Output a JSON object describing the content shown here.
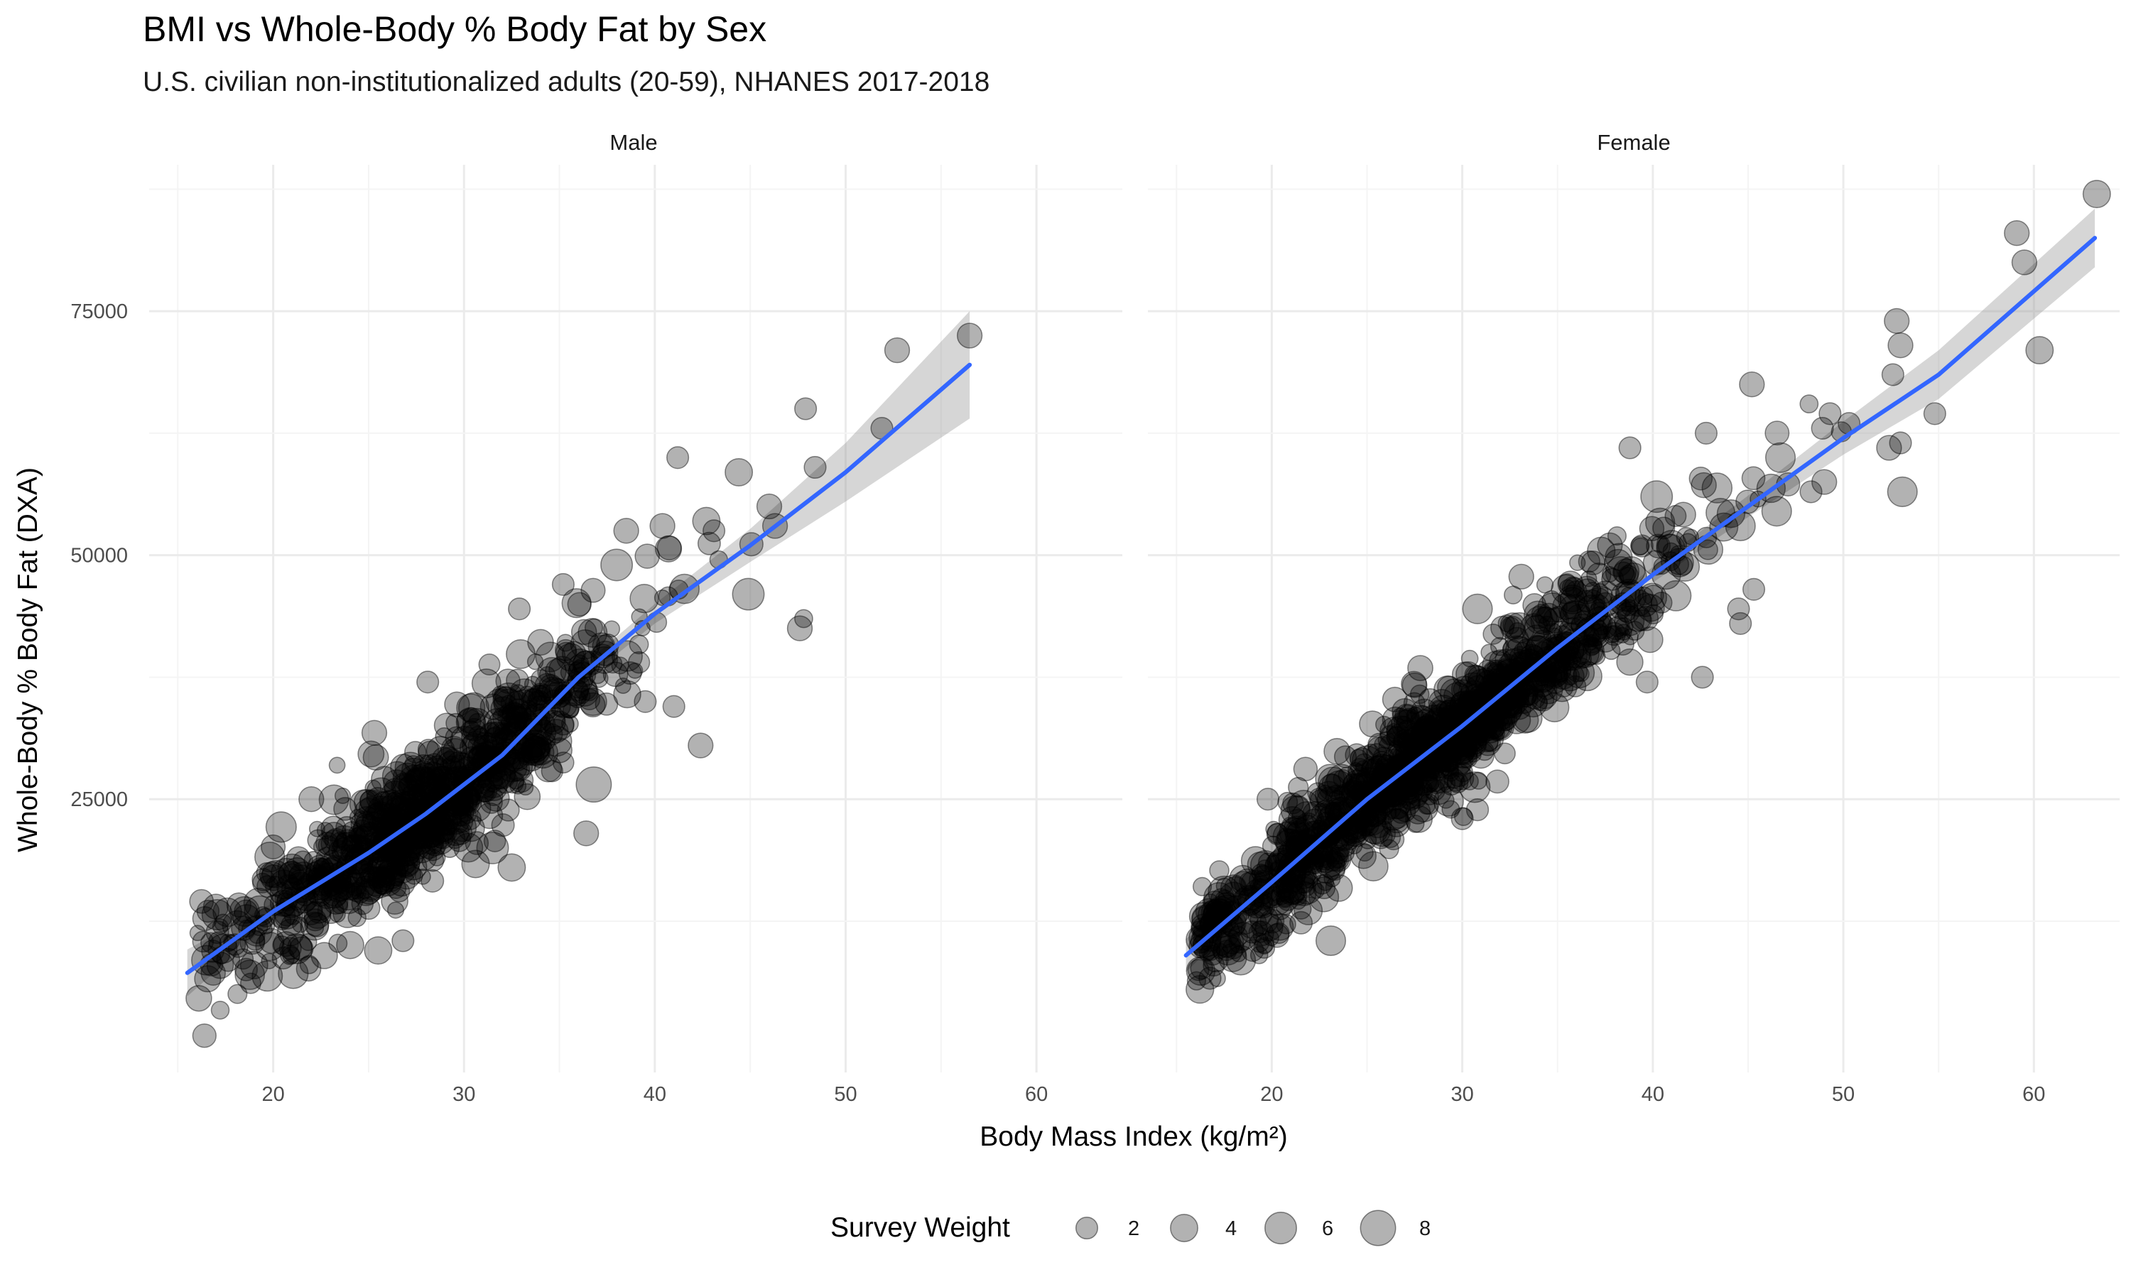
{
  "chart_data": {
    "type": "scatter",
    "title": "BMI vs Whole-Body % Body Fat by Sex",
    "subtitle": "U.S. civilian non-institutionalized adults (20-59), NHANES 2017-2018",
    "xlabel": "Body Mass Index (kg/m²)",
    "ylabel": "Whole-Body % Body Fat (DXA)",
    "xlim": [
      13.5,
      64.5
    ],
    "ylim": [
      -3000,
      90000
    ],
    "x_ticks": [
      20,
      30,
      40,
      50,
      60
    ],
    "y_ticks": [
      25000,
      50000,
      75000
    ],
    "x_tick_labels": [
      "20",
      "30",
      "40",
      "50",
      "60"
    ],
    "y_tick_labels": [
      "25000",
      "50000",
      "75000"
    ],
    "grid": true,
    "point_color": "#000000",
    "point_opacity": 0.3,
    "smooth_color": "#3366FF",
    "ribbon_color": "#999999",
    "legend": {
      "title": "Survey Weight",
      "position": "bottom",
      "sizes": [
        2,
        4,
        6,
        8
      ],
      "labels": [
        "2",
        "4",
        "6",
        "8"
      ]
    },
    "panels": [
      {
        "name": "Male",
        "smooth_curve": [
          {
            "x": 15.5,
            "y": 7200,
            "lo": 4800,
            "hi": 9600
          },
          {
            "x": 20,
            "y": 13500,
            "lo": 12600,
            "hi": 14400
          },
          {
            "x": 25,
            "y": 19500,
            "lo": 18900,
            "hi": 20100
          },
          {
            "x": 28,
            "y": 23500,
            "lo": 23000,
            "hi": 24000
          },
          {
            "x": 32,
            "y": 29500,
            "lo": 28900,
            "hi": 30100
          },
          {
            "x": 36,
            "y": 37500,
            "lo": 36700,
            "hi": 38300
          },
          {
            "x": 40,
            "y": 44000,
            "lo": 43000,
            "hi": 45000
          },
          {
            "x": 45,
            "y": 51000,
            "lo": 49300,
            "hi": 52700
          },
          {
            "x": 50,
            "y": 58500,
            "lo": 55500,
            "hi": 61500
          },
          {
            "x": 56.5,
            "y": 69500,
            "lo": 64000,
            "hi": 75000
          }
        ],
        "labeled_points": [
          {
            "x": 56.5,
            "y": 72500,
            "w": 3
          },
          {
            "x": 52.7,
            "y": 71000,
            "w": 3
          },
          {
            "x": 51.9,
            "y": 63000,
            "w": 2
          },
          {
            "x": 47.9,
            "y": 65000,
            "w": 2
          },
          {
            "x": 48.4,
            "y": 59000,
            "w": 2
          },
          {
            "x": 41.2,
            "y": 60000,
            "w": 2
          },
          {
            "x": 44.4,
            "y": 58500,
            "w": 4
          },
          {
            "x": 46.0,
            "y": 55000,
            "w": 3
          },
          {
            "x": 46.3,
            "y": 53000,
            "w": 3
          },
          {
            "x": 42.7,
            "y": 53500,
            "w": 4
          },
          {
            "x": 43.1,
            "y": 52500,
            "w": 2
          },
          {
            "x": 38.5,
            "y": 52500,
            "w": 3
          },
          {
            "x": 40.4,
            "y": 53000,
            "w": 3
          },
          {
            "x": 38.0,
            "y": 49000,
            "w": 6
          },
          {
            "x": 44.9,
            "y": 46000,
            "w": 6
          },
          {
            "x": 47.6,
            "y": 42500,
            "w": 3
          },
          {
            "x": 47.8,
            "y": 43500,
            "w": 1
          },
          {
            "x": 42.4,
            "y": 30500,
            "w": 3
          },
          {
            "x": 36.4,
            "y": 21500,
            "w": 3
          },
          {
            "x": 35.2,
            "y": 47000,
            "w": 2
          },
          {
            "x": 32.9,
            "y": 44500,
            "w": 2
          },
          {
            "x": 36.8,
            "y": 26500,
            "w": 8
          },
          {
            "x": 32.5,
            "y": 18000,
            "w": 4
          },
          {
            "x": 31.5,
            "y": 20000,
            "w": 6
          },
          {
            "x": 41.0,
            "y": 34500,
            "w": 2
          },
          {
            "x": 39.5,
            "y": 35000,
            "w": 2
          },
          {
            "x": 19.0,
            "y": 8000,
            "w": 4
          },
          {
            "x": 16.5,
            "y": 8500,
            "w": 5
          },
          {
            "x": 17.0,
            "y": 14000,
            "w": 3
          },
          {
            "x": 18.5,
            "y": 13500,
            "w": 5
          },
          {
            "x": 25.5,
            "y": 9500,
            "w": 4
          },
          {
            "x": 26.8,
            "y": 10500,
            "w": 2
          },
          {
            "x": 22.0,
            "y": 25000,
            "w": 3
          },
          {
            "x": 25.3,
            "y": 31800,
            "w": 3
          },
          {
            "x": 28.1,
            "y": 37000,
            "w": 2
          }
        ]
      },
      {
        "name": "Female",
        "smooth_curve": [
          {
            "x": 15.5,
            "y": 9000,
            "lo": 7300,
            "hi": 10700
          },
          {
            "x": 20,
            "y": 16500,
            "lo": 15900,
            "hi": 17100
          },
          {
            "x": 25,
            "y": 25000,
            "lo": 24500,
            "hi": 25500
          },
          {
            "x": 30,
            "y": 32500,
            "lo": 32000,
            "hi": 33000
          },
          {
            "x": 35,
            "y": 40500,
            "lo": 39900,
            "hi": 41100
          },
          {
            "x": 40,
            "y": 48000,
            "lo": 47200,
            "hi": 48800
          },
          {
            "x": 45,
            "y": 55000,
            "lo": 53900,
            "hi": 56100
          },
          {
            "x": 50,
            "y": 62000,
            "lo": 60300,
            "hi": 63700
          },
          {
            "x": 55,
            "y": 68500,
            "lo": 66000,
            "hi": 71000
          },
          {
            "x": 63.2,
            "y": 82500,
            "lo": 79500,
            "hi": 85500
          }
        ],
        "labeled_points": [
          {
            "x": 63.3,
            "y": 87000,
            "w": 4
          },
          {
            "x": 59.1,
            "y": 83000,
            "w": 3
          },
          {
            "x": 59.5,
            "y": 80000,
            "w": 3
          },
          {
            "x": 60.3,
            "y": 71000,
            "w": 4
          },
          {
            "x": 52.8,
            "y": 74000,
            "w": 3
          },
          {
            "x": 53.0,
            "y": 71500,
            "w": 3
          },
          {
            "x": 52.6,
            "y": 68500,
            "w": 2
          },
          {
            "x": 54.8,
            "y": 64500,
            "w": 2
          },
          {
            "x": 53.1,
            "y": 56500,
            "w": 5
          },
          {
            "x": 52.4,
            "y": 61000,
            "w": 3
          },
          {
            "x": 53.0,
            "y": 61500,
            "w": 2
          },
          {
            "x": 45.2,
            "y": 67500,
            "w": 3
          },
          {
            "x": 48.2,
            "y": 65500,
            "w": 1
          },
          {
            "x": 49.3,
            "y": 64500,
            "w": 2
          },
          {
            "x": 50.3,
            "y": 63500,
            "w": 2
          },
          {
            "x": 48.9,
            "y": 63000,
            "w": 2
          },
          {
            "x": 46.7,
            "y": 60000,
            "w": 5
          },
          {
            "x": 49.0,
            "y": 57500,
            "w": 3
          },
          {
            "x": 48.3,
            "y": 56500,
            "w": 2
          },
          {
            "x": 44.6,
            "y": 53000,
            "w": 5
          },
          {
            "x": 46.5,
            "y": 54500,
            "w": 5
          },
          {
            "x": 40.2,
            "y": 56000,
            "w": 6
          },
          {
            "x": 38.8,
            "y": 61000,
            "w": 2
          },
          {
            "x": 42.8,
            "y": 62500,
            "w": 2
          },
          {
            "x": 45.3,
            "y": 46500,
            "w": 2
          },
          {
            "x": 44.5,
            "y": 44500,
            "w": 2
          },
          {
            "x": 44.6,
            "y": 43000,
            "w": 2
          },
          {
            "x": 42.6,
            "y": 37500,
            "w": 2
          },
          {
            "x": 39.7,
            "y": 37000,
            "w": 2
          },
          {
            "x": 30.8,
            "y": 44500,
            "w": 5
          },
          {
            "x": 33.1,
            "y": 47800,
            "w": 3
          },
          {
            "x": 23.1,
            "y": 10500,
            "w": 5
          },
          {
            "x": 19.0,
            "y": 9500,
            "w": 2
          },
          {
            "x": 19.8,
            "y": 25000,
            "w": 2
          },
          {
            "x": 17.5,
            "y": 15500,
            "w": 6
          },
          {
            "x": 30.0,
            "y": 23000,
            "w": 2
          }
        ]
      }
    ]
  }
}
